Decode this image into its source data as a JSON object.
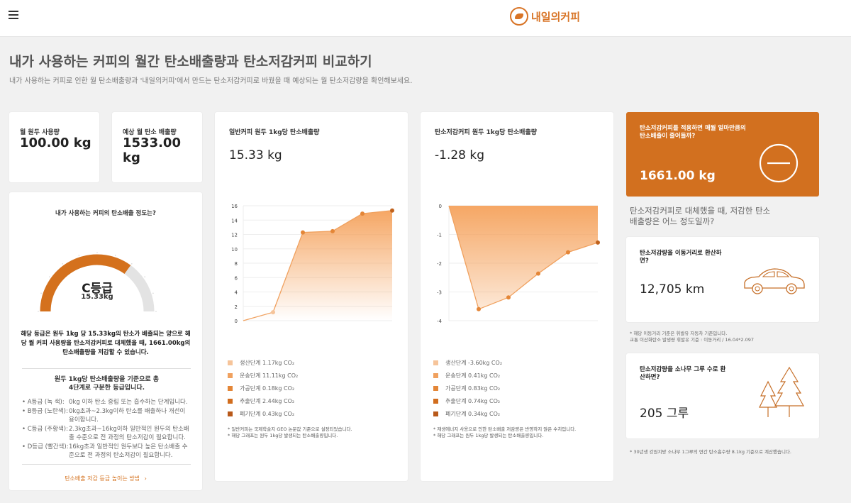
{
  "header": {
    "logo_text": "내일의커피"
  },
  "page": {
    "title": "내가 사용하는 커피의 월간 탄소배출량과 탄소저감커피 비교하기",
    "subtitle": "내가 사용하는 커피로 인한 월 탄소배출량과 '내일의커피'에서 만드는 탄소저감커피로 바꿨을 때 예상되는 월 탄소저감량을 확인해보세요."
  },
  "usage": {
    "label": "월 원두 사용량",
    "value": "100.00 kg"
  },
  "emission": {
    "label": "예상 월 탄소 배출량",
    "value": "1533.00 kg"
  },
  "grade_card": {
    "question": "내가 사용하는 커피의 탄소배출 정도는?",
    "grade": "C등급",
    "grade_value": "15.33kg",
    "description": "해당 등급은 원두 1kg 당 15.33kg의 탄소가 배출되는 양으로 해당 월 커피 사용량을 탄소저감커피로 대체했을 때, 1661.00kg의 탄소배출량을 저감할 수 있습니다.",
    "criteria_title": "원두 1kg당 탄소배출량을 기준으로 총 4단계로 구분한 등급입니다.",
    "grades": [
      {
        "key": "• A등급 (녹 색):",
        "text": "0kg 이하 탄소 중립 또는 흡수하는 단계입니다."
      },
      {
        "key": "• B등급 (노란색):",
        "text": "0kg초과~2.3kg이하 탄소를 배출하나 개선이 용이합니다."
      },
      {
        "key": "• C등급 (주황색):",
        "text": "2.3kg초과~16kg이하 일반적인 원두의 탄소배출 수준으로 전 과정의 탄소저감이 필요합니다."
      },
      {
        "key": "• D등급 (빨간색):",
        "text": "16kg초과 일반적인 원두보다 높은 탄소배출 수준으로 전 과정의 탄소저감이 필요합니다."
      }
    ],
    "link_label": "탄소배출 저감 등급 높이는 방법",
    "gauge_fraction": 0.7,
    "colors": {
      "active": "#d4711d",
      "inactive": "#e3e3e3"
    }
  },
  "normal_card": {
    "title": "일반커피 원두 1kg당 탄소배출량",
    "value": "15.33 kg",
    "legend": [
      {
        "label": "생산단계 1.17kg CO₂",
        "color": "#f6c49a"
      },
      {
        "label": "운송단계 11.11kg CO₂",
        "color": "#f0a15f"
      },
      {
        "label": "가공단계 0.18kg CO₂",
        "color": "#e48637"
      },
      {
        "label": "추출단계 2.44kg CO₂",
        "color": "#d16d1e"
      },
      {
        "label": "폐기단계 0.43kg CO₂",
        "color": "#b8591a"
      }
    ],
    "notes": [
      "* 일반커피는 국제학술지 GEO 논문값 기준으로 설정되었습니다.",
      "* 해당 그래프는 원두 1kg당 발생되는 탄소배출량입니다."
    ]
  },
  "reduced_card": {
    "title": "탄소저감커피 원두 1kg당 탄소배출량",
    "value": "-1.28 kg",
    "legend": [
      {
        "label": "생산단계 -3.60kg CO₂",
        "color": "#f6c49a"
      },
      {
        "label": "운송단계 0.41kg CO₂",
        "color": "#f0a15f"
      },
      {
        "label": "가공단계 0.83kg CO₂",
        "color": "#e48637"
      },
      {
        "label": "추출단계 0.74kg CO₂",
        "color": "#d16d1e"
      },
      {
        "label": "폐기단계 0.34kg CO₂",
        "color": "#b8591a"
      }
    ],
    "notes": [
      "* 재생에너지 사용으로 인한 탄소배출 저감량은 반영하지 않은 수치입니다.",
      "* 해당 그래프는 원두 1kg당 발생되는 탄소배출량입니다."
    ]
  },
  "savings": {
    "title": "탄소저감커피를 적용하면 매월 얼마만큼의 탄소배출이 줄어들까?",
    "value": "1661.00 kg",
    "question": "탄소저감커피로 대체했을 때, 저감한 탄소배출량은 어느 정도일까?"
  },
  "distance_card": {
    "title": "탄소저감량을 이동거리로 환산하면?",
    "value": "12,705 km",
    "notes": [
      "* 해당 이동거리 기준은 휘발유 자동차 기준입니다.",
      "교통 이산화탄소 발생량 휘발유 기준 : 이동거리 / 16.04*2.097"
    ]
  },
  "tree_card": {
    "title": "탄소저감량을 소나무 그루 수로 환산하면?",
    "value": "205 그루",
    "note": "* 30년생 강원지방 소나무 1그루의 연간 탄소흡수량 8.1kg 기준으로 계산했습니다."
  },
  "chart_data": [
    {
      "type": "area",
      "title": "일반커피 원두 1kg당 탄소배출량",
      "x": [
        0,
        1,
        2,
        3,
        4,
        5
      ],
      "y": [
        0,
        1.17,
        12.28,
        12.46,
        14.9,
        15.33
      ],
      "ylim": [
        0,
        16
      ],
      "yticks": [
        "16",
        "14",
        "12",
        "10",
        "8",
        "6",
        "4",
        "2",
        "0"
      ],
      "colors": {
        "line": "#f0a15f",
        "point": "#e48637",
        "fill": "#f5a25c"
      }
    },
    {
      "type": "area",
      "title": "탄소저감커피 원두 1kg당 탄소배출량",
      "x": [
        0,
        1,
        2,
        3,
        4,
        5
      ],
      "y": [
        0,
        -3.6,
        -3.19,
        -2.36,
        -1.62,
        -1.28
      ],
      "ylim": [
        -4,
        0
      ],
      "yticks": [
        "0",
        "-1",
        "-2",
        "-3",
        "-4"
      ],
      "colors": {
        "line": "#f0a15f",
        "point": "#e48637",
        "fill": "#f5a25c"
      }
    }
  ]
}
